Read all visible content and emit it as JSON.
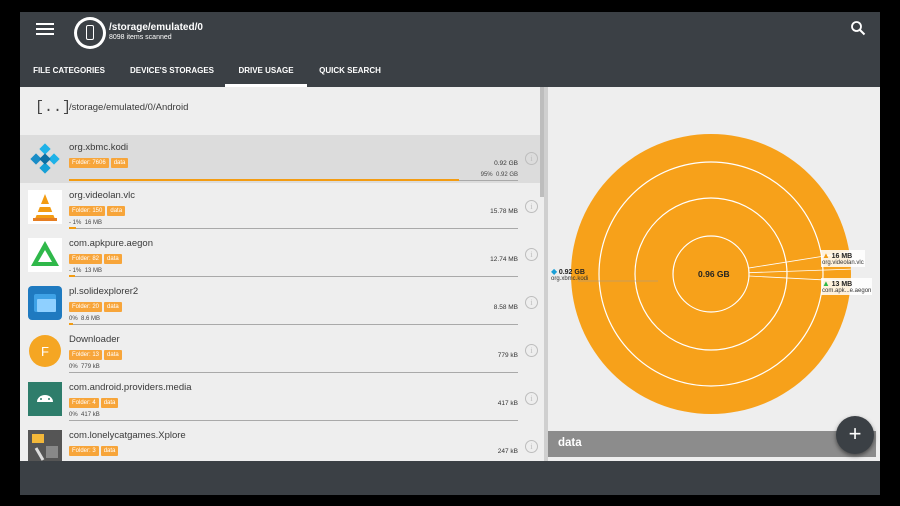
{
  "header": {
    "path": "/storage/emulated/0",
    "items_scanned": "8098 items scanned"
  },
  "tabs": [
    {
      "label": "FILE CATEGORIES"
    },
    {
      "label": "DEVICE'S STORAGES"
    },
    {
      "label": "DRIVE USAGE",
      "active": true
    },
    {
      "label": "QUICK SEARCH"
    }
  ],
  "list": {
    "parent": {
      "icon_text": "[..]",
      "path": "/storage/emulated/0/Android"
    },
    "items": [
      {
        "name": "org.xbmc.kodi",
        "folder_tag": "Folder: 7606",
        "data_tag": "data",
        "size": "0.92 GB",
        "pct_label": "95%",
        "pct_size": "0.92 GB",
        "pct_value": 95,
        "icon": "kodi-icon",
        "selected": true
      },
      {
        "name": "org.videolan.vlc",
        "folder_tag": "Folder: 150",
        "data_tag": "data",
        "size": "15.78 MB",
        "pct_label": "- 1%",
        "pct_size": "16 MB",
        "pct_value": 1.6,
        "icon": "vlc-icon"
      },
      {
        "name": "com.apkpure.aegon",
        "folder_tag": "Folder: 82",
        "data_tag": "data",
        "size": "12.74 MB",
        "pct_label": "- 1%",
        "pct_size": "13 MB",
        "pct_value": 1.3,
        "icon": "apkpure-icon"
      },
      {
        "name": "pl.solidexplorer2",
        "folder_tag": "Folder: 20",
        "data_tag": "data",
        "size": "8.58 MB",
        "pct_label": "0%",
        "pct_size": "8.6 MB",
        "pct_value": 0.9,
        "icon": "solid-explorer-icon"
      },
      {
        "name": "Downloader",
        "folder_tag": "Folder: 13",
        "data_tag": "data",
        "size": "779 kB",
        "pct_label": "0%",
        "pct_size": "779 kB",
        "pct_value": 0,
        "icon": "downloader-icon"
      },
      {
        "name": "com.android.providers.media",
        "folder_tag": "Folder: 4",
        "data_tag": "data",
        "size": "417 kB",
        "pct_label": "0%",
        "pct_size": "417 kB",
        "pct_value": 0,
        "icon": "android-icon"
      },
      {
        "name": "com.lonelycatgames.Xplore",
        "folder_tag": "Folder: 3",
        "data_tag": "data",
        "size": "247 kB",
        "pct_label": "",
        "pct_size": "",
        "pct_value": 0,
        "icon": "xplore-icon"
      }
    ]
  },
  "chart": {
    "center_label": "0.96 GB",
    "labels": [
      {
        "size": "0.92 GB",
        "name": "org.xbmc.kodi"
      },
      {
        "size": "16 MB",
        "name": "org.videolan.vlc"
      },
      {
        "size": "13 MB",
        "name": "com.apk...e.aegon"
      }
    ],
    "footer": "data",
    "colors": {
      "fill": "#f7a11a",
      "ring": "#ffffff"
    }
  }
}
